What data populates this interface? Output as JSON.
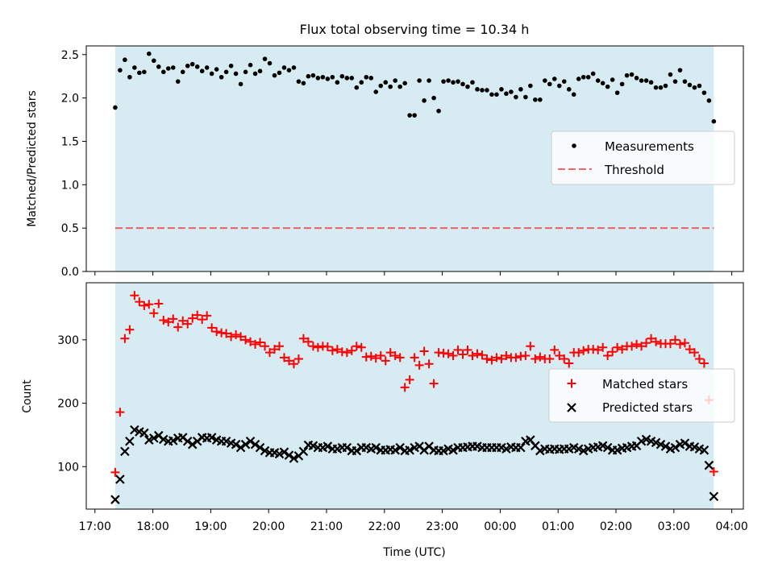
{
  "title": "Flux total observing time = 10.34 h",
  "colors": {
    "shade": "#add8e6",
    "measurement": "#000000",
    "threshold": "#ff0000",
    "matched": "#ff0000",
    "predicted": "#000000"
  },
  "chart_data": [
    {
      "type": "scatter",
      "ylabel": "Matched/Predicted stars",
      "xlim_hours": [
        16.85,
        28.2
      ],
      "ylim": [
        0.0,
        2.6
      ],
      "yticks": [
        0.0,
        0.5,
        1.0,
        1.5,
        2.0,
        2.5
      ],
      "ytick_labels": [
        "0.0",
        "0.5",
        "1.0",
        "1.5",
        "2.0",
        "2.5"
      ],
      "shaded_span_hours": [
        17.35,
        27.69
      ],
      "threshold": 0.5,
      "legend": {
        "position": "center-right",
        "entries": [
          "Measurements",
          "Threshold"
        ]
      },
      "series": [
        {
          "name": "Measurements",
          "marker": "dot",
          "x_start_hours": 17.35,
          "x_end_hours": 27.69,
          "values": [
            1.89,
            2.32,
            2.44,
            2.24,
            2.35,
            2.29,
            2.3,
            2.51,
            2.43,
            2.36,
            2.3,
            2.34,
            2.35,
            2.19,
            2.3,
            2.37,
            2.39,
            2.36,
            2.31,
            2.35,
            2.28,
            2.33,
            2.24,
            2.3,
            2.37,
            2.28,
            2.16,
            2.3,
            2.38,
            2.28,
            2.31,
            2.45,
            2.4,
            2.26,
            2.29,
            2.35,
            2.32,
            2.35,
            2.19,
            2.17,
            2.25,
            2.26,
            2.23,
            2.24,
            2.22,
            2.24,
            2.18,
            2.25,
            2.23,
            2.23,
            2.12,
            2.18,
            2.24,
            2.23,
            2.07,
            2.14,
            2.18,
            2.13,
            2.2,
            2.13,
            2.17,
            1.8,
            1.8,
            2.2,
            1.97,
            2.2,
            2.0,
            1.85,
            2.19,
            2.2,
            2.18,
            2.19,
            2.16,
            2.13,
            2.18,
            2.1,
            2.09,
            2.09,
            2.04,
            2.04,
            2.1,
            2.05,
            2.07,
            2.01,
            2.1,
            2.01,
            2.14,
            1.98,
            1.98,
            2.2,
            2.16,
            2.22,
            2.14,
            2.19,
            2.1,
            2.04,
            2.22,
            2.24,
            2.24,
            2.28,
            2.2,
            2.17,
            2.13,
            2.21,
            2.06,
            2.16,
            2.26,
            2.27,
            2.23,
            2.2,
            2.2,
            2.18,
            2.12,
            2.12,
            2.14,
            2.27,
            2.19,
            2.32,
            2.19,
            2.15,
            2.12,
            2.14,
            2.06,
            1.97,
            1.73
          ]
        },
        {
          "name": "Threshold",
          "marker": "dashed-line",
          "value": 0.5
        }
      ]
    },
    {
      "type": "scatter",
      "ylabel": "Count",
      "xlabel": "Time (UTC)",
      "xlim_hours": [
        16.85,
        28.2
      ],
      "ylim": [
        33,
        390
      ],
      "yticks": [
        100,
        200,
        300
      ],
      "ytick_labels": [
        "100",
        "200",
        "300"
      ],
      "xticks_hours": [
        17,
        18,
        19,
        20,
        21,
        22,
        23,
        24,
        25,
        26,
        27,
        28
      ],
      "xtick_labels": [
        "17:00",
        "18:00",
        "19:00",
        "20:00",
        "21:00",
        "22:00",
        "23:00",
        "00:00",
        "01:00",
        "02:00",
        "03:00",
        "04:00"
      ],
      "shaded_span_hours": [
        17.35,
        27.69
      ],
      "legend": {
        "position": "center-right",
        "entries": [
          "Matched stars",
          "Predicted stars"
        ]
      },
      "series": [
        {
          "name": "Matched stars",
          "marker": "plus",
          "x_start_hours": 17.35,
          "x_end_hours": 27.69,
          "values": [
            91,
            186,
            302,
            316,
            370,
            360,
            354,
            356,
            342,
            357,
            331,
            328,
            333,
            320,
            330,
            325,
            334,
            339,
            332,
            338,
            319,
            313,
            311,
            310,
            305,
            308,
            305,
            300,
            297,
            293,
            296,
            290,
            280,
            285,
            290,
            272,
            267,
            262,
            270,
            302,
            297,
            290,
            288,
            290,
            289,
            283,
            285,
            281,
            280,
            283,
            290,
            288,
            273,
            274,
            271,
            275,
            267,
            280,
            275,
            272,
            225,
            237,
            272,
            260,
            282,
            262,
            231,
            280,
            279,
            278,
            275,
            284,
            277,
            284,
            275,
            278,
            276,
            270,
            268,
            272,
            270,
            275,
            272,
            272,
            274,
            275,
            290,
            270,
            273,
            270,
            270,
            284,
            275,
            270,
            263,
            280,
            280,
            283,
            285,
            285,
            284,
            288,
            275,
            281,
            288,
            285,
            290,
            290,
            293,
            290,
            295,
            302,
            297,
            294,
            294,
            294,
            300,
            293,
            295,
            285,
            280,
            270,
            263,
            205,
            92
          ]
        },
        {
          "name": "Predicted stars",
          "marker": "x",
          "x_start_hours": 17.35,
          "x_end_hours": 27.69,
          "values": [
            48,
            80,
            124,
            140,
            158,
            155,
            153,
            142,
            145,
            149,
            143,
            140,
            141,
            145,
            146,
            140,
            135,
            140,
            146,
            145,
            146,
            142,
            140,
            140,
            137,
            135,
            130,
            135,
            140,
            135,
            130,
            125,
            122,
            122,
            120,
            123,
            118,
            113,
            117,
            124,
            134,
            133,
            130,
            130,
            132,
            128,
            128,
            130,
            130,
            125,
            125,
            130,
            130,
            128,
            130,
            126,
            126,
            127,
            126,
            130,
            125,
            126,
            130,
            132,
            126,
            132,
            126,
            125,
            125,
            128,
            126,
            130,
            130,
            131,
            132,
            132,
            130,
            130,
            130,
            130,
            130,
            128,
            131,
            130,
            130,
            140,
            142,
            133,
            125,
            128,
            127,
            128,
            127,
            128,
            128,
            130,
            128,
            125,
            128,
            130,
            131,
            133,
            130,
            126,
            126,
            129,
            130,
            132,
            133,
            140,
            143,
            140,
            138,
            135,
            132,
            128,
            130,
            135,
            137,
            132,
            131,
            128,
            126,
            102,
            53
          ]
        }
      ]
    }
  ]
}
